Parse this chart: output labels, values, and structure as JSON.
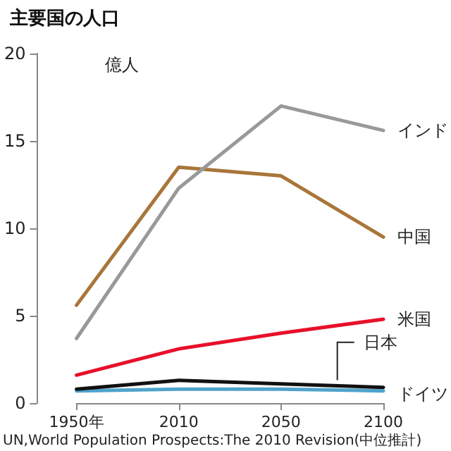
{
  "chart_data": {
    "type": "line",
    "title": "主要国の人口",
    "ylabel": "億人",
    "annotations": [
      "UN,World Population Prospects:The 2010 Revision(中位推計)"
    ],
    "categories": [
      "1950年",
      "2010",
      "2050",
      "2100"
    ],
    "ylim": [
      0,
      20
    ],
    "yticks": [
      0,
      5,
      10,
      15,
      20
    ],
    "grid": false,
    "legend": false,
    "marker": "none",
    "line_style": "solid",
    "series": [
      {
        "name": "インド",
        "color": "#999999",
        "values": [
          3.7,
          12.3,
          17.0,
          15.6
        ]
      },
      {
        "name": "中国",
        "color": "#a8763a",
        "values": [
          5.6,
          13.5,
          13.0,
          9.5
        ]
      },
      {
        "name": "米国",
        "color": "#e8102a",
        "values": [
          1.6,
          3.1,
          4.0,
          4.8
        ]
      },
      {
        "name": "日本",
        "color": "#111111",
        "values": [
          0.8,
          1.3,
          1.1,
          0.9
        ]
      },
      {
        "name": "ドイツ",
        "color": "#4fa3cc",
        "values": [
          0.7,
          0.8,
          0.8,
          0.7
        ]
      }
    ]
  }
}
